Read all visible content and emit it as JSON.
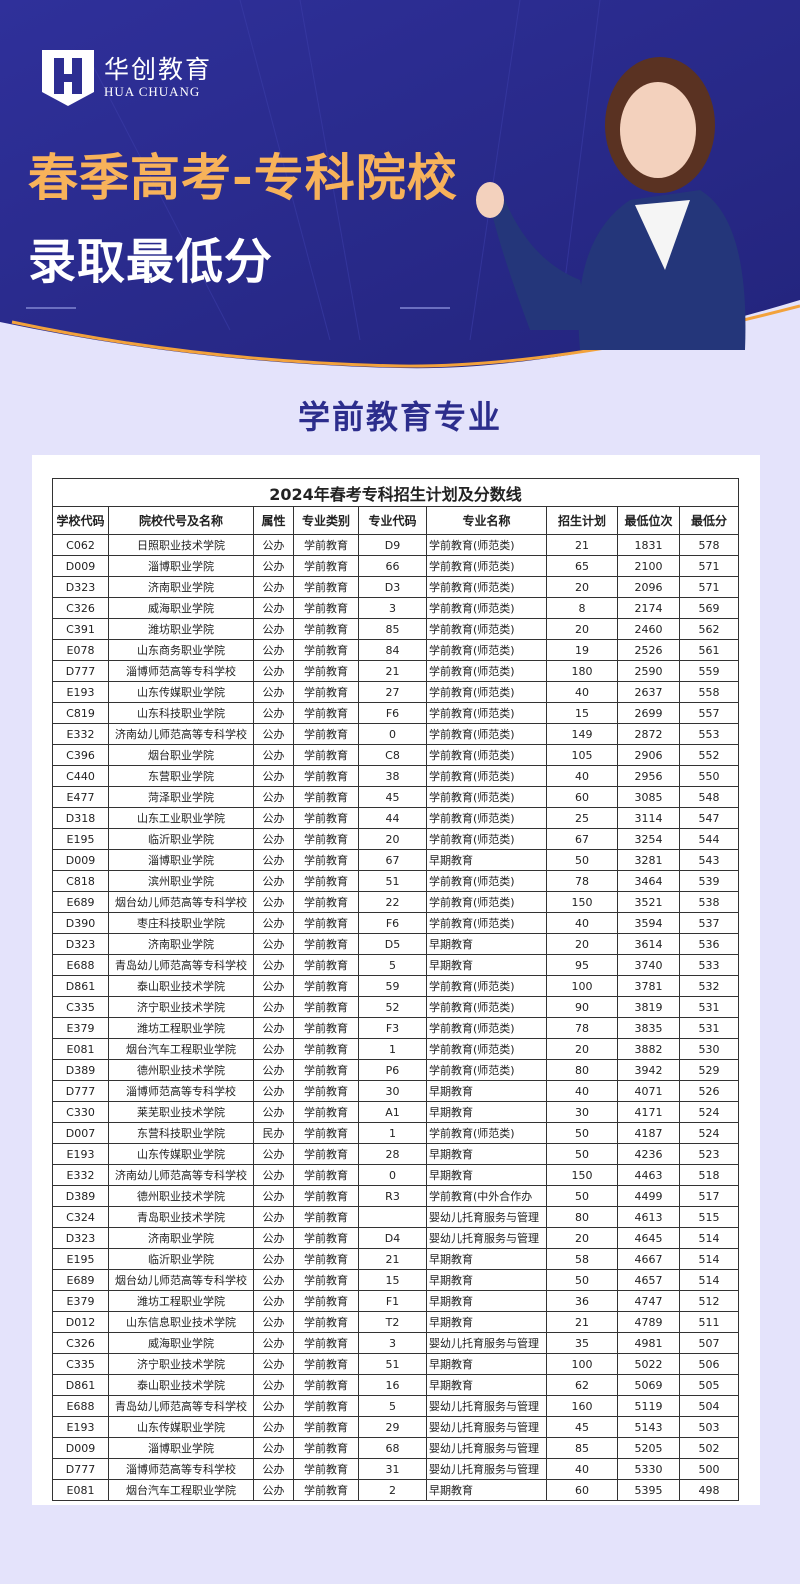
{
  "banner": {
    "brand_cn": "华创教育",
    "brand_en": "HUA CHUANG",
    "title_line1": "春季高考-专科院校",
    "title_line2": "录取最低分",
    "colors": {
      "background": "#2b2c8e",
      "title_accent": "#f7b25a",
      "curve_line": "#f2a23c"
    }
  },
  "subtitle": "学前教育专业",
  "table": {
    "caption": "2024年春考专科招生计划及分数线",
    "headers": [
      "学校代码",
      "院校代号及名称",
      "属性",
      "专业类别",
      "专业代码",
      "专业名称",
      "招生计划",
      "最低位次",
      "最低分"
    ],
    "rows": [
      [
        "C062",
        "日照职业技术学院",
        "公办",
        "学前教育",
        "D9",
        "学前教育(师范类)",
        "21",
        "1831",
        "578"
      ],
      [
        "D009",
        "淄博职业学院",
        "公办",
        "学前教育",
        "66",
        "学前教育(师范类)",
        "65",
        "2100",
        "571"
      ],
      [
        "D323",
        "济南职业学院",
        "公办",
        "学前教育",
        "D3",
        "学前教育(师范类)",
        "20",
        "2096",
        "571"
      ],
      [
        "C326",
        "威海职业学院",
        "公办",
        "学前教育",
        "3",
        "学前教育(师范类)",
        "8",
        "2174",
        "569"
      ],
      [
        "C391",
        "潍坊职业学院",
        "公办",
        "学前教育",
        "85",
        "学前教育(师范类)",
        "20",
        "2460",
        "562"
      ],
      [
        "E078",
        "山东商务职业学院",
        "公办",
        "学前教育",
        "84",
        "学前教育(师范类)",
        "19",
        "2526",
        "561"
      ],
      [
        "D777",
        "淄博师范高等专科学校",
        "公办",
        "学前教育",
        "21",
        "学前教育(师范类)",
        "180",
        "2590",
        "559"
      ],
      [
        "E193",
        "山东传媒职业学院",
        "公办",
        "学前教育",
        "27",
        "学前教育(师范类)",
        "40",
        "2637",
        "558"
      ],
      [
        "C819",
        "山东科技职业学院",
        "公办",
        "学前教育",
        "F6",
        "学前教育(师范类)",
        "15",
        "2699",
        "557"
      ],
      [
        "E332",
        "济南幼儿师范高等专科学校",
        "公办",
        "学前教育",
        "0",
        "学前教育(师范类)",
        "149",
        "2872",
        "553"
      ],
      [
        "C396",
        "烟台职业学院",
        "公办",
        "学前教育",
        "C8",
        "学前教育(师范类)",
        "105",
        "2906",
        "552"
      ],
      [
        "C440",
        "东营职业学院",
        "公办",
        "学前教育",
        "38",
        "学前教育(师范类)",
        "40",
        "2956",
        "550"
      ],
      [
        "E477",
        "菏泽职业学院",
        "公办",
        "学前教育",
        "45",
        "学前教育(师范类)",
        "60",
        "3085",
        "548"
      ],
      [
        "D318",
        "山东工业职业学院",
        "公办",
        "学前教育",
        "44",
        "学前教育(师范类)",
        "25",
        "3114",
        "547"
      ],
      [
        "E195",
        "临沂职业学院",
        "公办",
        "学前教育",
        "20",
        "学前教育(师范类)",
        "67",
        "3254",
        "544"
      ],
      [
        "D009",
        "淄博职业学院",
        "公办",
        "学前教育",
        "67",
        "早期教育",
        "50",
        "3281",
        "543"
      ],
      [
        "C818",
        "滨州职业学院",
        "公办",
        "学前教育",
        "51",
        "学前教育(师范类)",
        "78",
        "3464",
        "539"
      ],
      [
        "E689",
        "烟台幼儿师范高等专科学校",
        "公办",
        "学前教育",
        "22",
        "学前教育(师范类)",
        "150",
        "3521",
        "538"
      ],
      [
        "D390",
        "枣庄科技职业学院",
        "公办",
        "学前教育",
        "F6",
        "学前教育(师范类)",
        "40",
        "3594",
        "537"
      ],
      [
        "D323",
        "济南职业学院",
        "公办",
        "学前教育",
        "D5",
        "早期教育",
        "20",
        "3614",
        "536"
      ],
      [
        "E688",
        "青岛幼儿师范高等专科学校",
        "公办",
        "学前教育",
        "5",
        "早期教育",
        "95",
        "3740",
        "533"
      ],
      [
        "D861",
        "泰山职业技术学院",
        "公办",
        "学前教育",
        "59",
        "学前教育(师范类)",
        "100",
        "3781",
        "532"
      ],
      [
        "C335",
        "济宁职业技术学院",
        "公办",
        "学前教育",
        "52",
        "学前教育(师范类)",
        "90",
        "3819",
        "531"
      ],
      [
        "E379",
        "潍坊工程职业学院",
        "公办",
        "学前教育",
        "F3",
        "学前教育(师范类)",
        "78",
        "3835",
        "531"
      ],
      [
        "E081",
        "烟台汽车工程职业学院",
        "公办",
        "学前教育",
        "1",
        "学前教育(师范类)",
        "20",
        "3882",
        "530"
      ],
      [
        "D389",
        "德州职业技术学院",
        "公办",
        "学前教育",
        "P6",
        "学前教育(师范类)",
        "80",
        "3942",
        "529"
      ],
      [
        "D777",
        "淄博师范高等专科学校",
        "公办",
        "学前教育",
        "30",
        "早期教育",
        "40",
        "4071",
        "526"
      ],
      [
        "C330",
        "莱芜职业技术学院",
        "公办",
        "学前教育",
        "A1",
        "早期教育",
        "30",
        "4171",
        "524"
      ],
      [
        "D007",
        "东营科技职业学院",
        "民办",
        "学前教育",
        "1",
        "学前教育(师范类)",
        "50",
        "4187",
        "524"
      ],
      [
        "E193",
        "山东传媒职业学院",
        "公办",
        "学前教育",
        "28",
        "早期教育",
        "50",
        "4236",
        "523"
      ],
      [
        "E332",
        "济南幼儿师范高等专科学校",
        "公办",
        "学前教育",
        "0",
        "早期教育",
        "150",
        "4463",
        "518"
      ],
      [
        "D389",
        "德州职业技术学院",
        "公办",
        "学前教育",
        "R3",
        "学前教育(中外合作办",
        "50",
        "4499",
        "517"
      ],
      [
        "C324",
        "青岛职业技术学院",
        "公办",
        "学前教育",
        "",
        "婴幼儿托育服务与管理",
        "80",
        "4613",
        "515"
      ],
      [
        "D323",
        "济南职业学院",
        "公办",
        "学前教育",
        "D4",
        "婴幼儿托育服务与管理",
        "20",
        "4645",
        "514"
      ],
      [
        "E195",
        "临沂职业学院",
        "公办",
        "学前教育",
        "21",
        "早期教育",
        "58",
        "4667",
        "514"
      ],
      [
        "E689",
        "烟台幼儿师范高等专科学校",
        "公办",
        "学前教育",
        "15",
        "早期教育",
        "50",
        "4657",
        "514"
      ],
      [
        "E379",
        "潍坊工程职业学院",
        "公办",
        "学前教育",
        "F1",
        "早期教育",
        "36",
        "4747",
        "512"
      ],
      [
        "D012",
        "山东信息职业技术学院",
        "公办",
        "学前教育",
        "T2",
        "早期教育",
        "21",
        "4789",
        "511"
      ],
      [
        "C326",
        "威海职业学院",
        "公办",
        "学前教育",
        "3",
        "婴幼儿托育服务与管理",
        "35",
        "4981",
        "507"
      ],
      [
        "C335",
        "济宁职业技术学院",
        "公办",
        "学前教育",
        "51",
        "早期教育",
        "100",
        "5022",
        "506"
      ],
      [
        "D861",
        "泰山职业技术学院",
        "公办",
        "学前教育",
        "16",
        "早期教育",
        "62",
        "5069",
        "505"
      ],
      [
        "E688",
        "青岛幼儿师范高等专科学校",
        "公办",
        "学前教育",
        "5",
        "婴幼儿托育服务与管理",
        "160",
        "5119",
        "504"
      ],
      [
        "E193",
        "山东传媒职业学院",
        "公办",
        "学前教育",
        "29",
        "婴幼儿托育服务与管理",
        "45",
        "5143",
        "503"
      ],
      [
        "D009",
        "淄博职业学院",
        "公办",
        "学前教育",
        "68",
        "婴幼儿托育服务与管理",
        "85",
        "5205",
        "502"
      ],
      [
        "D777",
        "淄博师范高等专科学校",
        "公办",
        "学前教育",
        "31",
        "婴幼儿托育服务与管理",
        "40",
        "5330",
        "500"
      ],
      [
        "E081",
        "烟台汽车工程职业学院",
        "公办",
        "学前教育",
        "2",
        "早期教育",
        "60",
        "5395",
        "498"
      ]
    ]
  }
}
